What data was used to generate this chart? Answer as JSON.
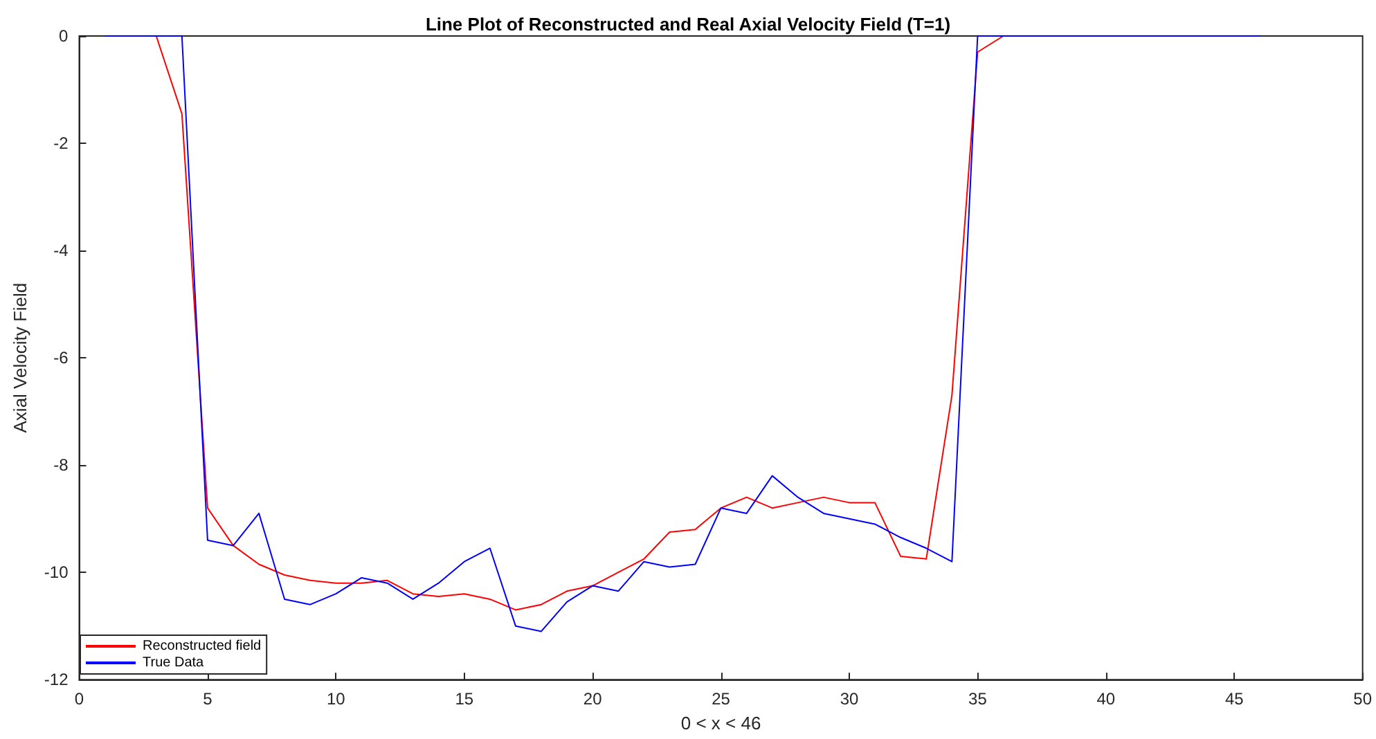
{
  "chart_data": {
    "type": "line",
    "title": "Line Plot of Reconstructed and Real Axial Velocity Field (T=1)",
    "xlabel": "0 < x < 46",
    "ylabel": "Axial Velocity Field",
    "x": [
      1,
      2,
      3,
      4,
      5,
      6,
      7,
      8,
      9,
      10,
      11,
      12,
      13,
      14,
      15,
      16,
      17,
      18,
      19,
      20,
      21,
      22,
      23,
      24,
      25,
      26,
      27,
      28,
      29,
      30,
      31,
      32,
      33,
      34,
      35,
      36,
      37,
      38,
      39,
      40,
      41,
      42,
      43,
      44,
      45,
      46
    ],
    "series": [
      {
        "name": "Reconstructed field",
        "color": "#ff0000",
        "values": [
          null,
          null,
          0,
          -1.45,
          -8.8,
          -9.5,
          -9.85,
          -10.05,
          -10.15,
          -10.2,
          -10.2,
          -10.15,
          -10.4,
          -10.45,
          -10.4,
          -10.5,
          -10.7,
          -10.6,
          -10.35,
          -10.25,
          -10,
          -9.75,
          -9.25,
          -9.2,
          -8.8,
          -8.6,
          -8.8,
          -8.7,
          -8.6,
          -8.7,
          -8.7,
          -9.7,
          -9.75,
          -6.7,
          -0.3,
          0,
          null,
          null,
          null,
          null,
          null,
          null,
          null,
          null,
          null,
          null
        ]
      },
      {
        "name": "True Data",
        "color": "#0000ff",
        "values": [
          0,
          0,
          0,
          0,
          -9.4,
          -9.5,
          -8.9,
          -10.5,
          -10.6,
          -10.4,
          -10.1,
          -10.2,
          -10.5,
          -10.2,
          -9.8,
          -9.55,
          -11,
          -11.1,
          -10.55,
          -10.25,
          -10.35,
          -9.8,
          -9.9,
          -9.85,
          -8.8,
          -8.9,
          -8.2,
          -8.6,
          -8.9,
          -9,
          -9.1,
          -9.35,
          -9.55,
          -9.8,
          0,
          0,
          0,
          0,
          0,
          0,
          0,
          0,
          0,
          0,
          0,
          0
        ]
      }
    ],
    "xlim": [
      0,
      50
    ],
    "xticks": [
      0,
      5,
      10,
      15,
      20,
      25,
      30,
      35,
      40,
      45,
      50
    ],
    "ylim": [
      -12,
      0
    ],
    "yticks": [
      -12,
      -10,
      -8,
      -6,
      -4,
      -2,
      0
    ],
    "legend": "bottom left",
    "grid": false,
    "marker": "none",
    "line_style": "solid"
  }
}
